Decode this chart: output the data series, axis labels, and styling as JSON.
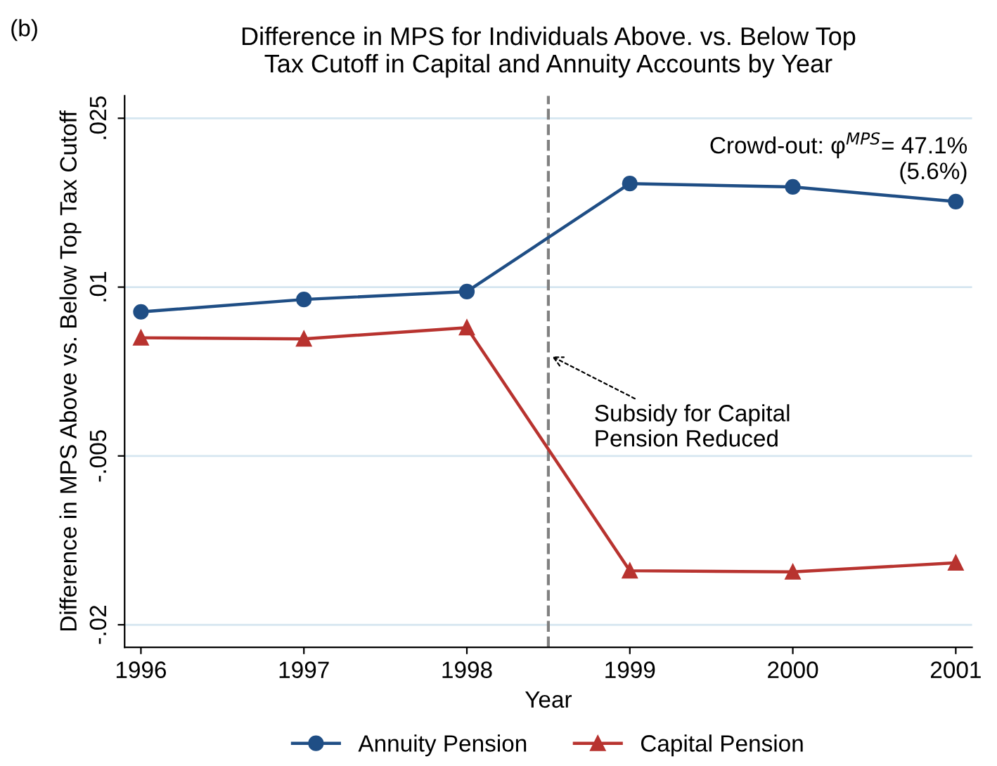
{
  "chart_data": {
    "type": "line",
    "title": "Difference in MPS for Individuals Above. vs. Below Top\nTax Cutoff in Capital and Annuity Accounts by Year",
    "xlabel": "Year",
    "ylabel": "Difference in MPS Above vs. Below Top Tax Cutoff",
    "x": [
      1996,
      1997,
      1998,
      1999,
      2000,
      2001
    ],
    "series": [
      {
        "name": "Annuity Pension",
        "color": "#1f4e85",
        "marker": "circle",
        "values": [
          0.0078,
          0.0089,
          0.0096,
          0.0192,
          0.0189,
          0.0176
        ]
      },
      {
        "name": "Capital Pension",
        "color": "#b8332f",
        "marker": "triangle",
        "values": [
          0.0055,
          0.0054,
          0.0064,
          -0.0152,
          -0.0153,
          -0.0145
        ]
      }
    ],
    "xlim": [
      1995.9,
      2001.1
    ],
    "xticks": [
      1996,
      1997,
      1998,
      1999,
      2000,
      2001
    ],
    "ylim": [
      -0.022,
      0.027
    ],
    "yticks": [
      {
        "value": -0.02,
        "label": "-.02"
      },
      {
        "value": -0.005,
        "label": "-.005"
      },
      {
        "value": 0.01,
        "label": ".01"
      },
      {
        "value": 0.025,
        "label": ".025"
      }
    ],
    "ref_lines": [
      {
        "axis": "x",
        "value": 1998.5,
        "label": "Subsidy for Capital\nPension Reduced",
        "color": "#808080",
        "line_style": "dashed"
      }
    ],
    "annotations": [
      "(b)",
      "Crowd-out: φ$^{MPS}$= 47.1%",
      "(5.6%)"
    ],
    "grid": "y",
    "legend": "bottom",
    "line_style": "solid"
  }
}
